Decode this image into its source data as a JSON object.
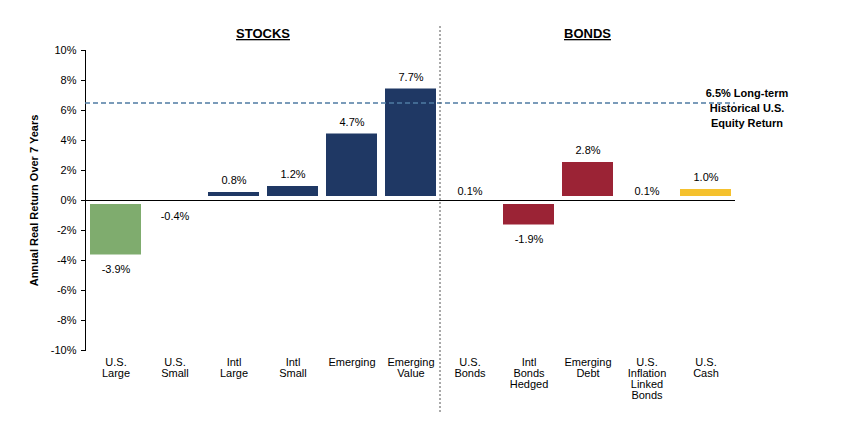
{
  "chart_data": {
    "type": "bar",
    "categories": [
      "U.S. Large",
      "U.S. Small",
      "Intl Large",
      "Intl Small",
      "Emerging",
      "Emerging Value",
      "U.S. Bonds",
      "Intl Bonds Hedged",
      "Emerging Debt",
      "U.S. Inflation Linked Bonds",
      "U.S. Cash"
    ],
    "values": [
      -3.9,
      -0.4,
      0.8,
      1.2,
      4.7,
      7.7,
      0.1,
      -1.9,
      2.8,
      0.1,
      1.0
    ],
    "value_labels": [
      "-3.9%",
      "-0.4%",
      "0.8%",
      "1.2%",
      "4.7%",
      "7.7%",
      "0.1%",
      "-1.9%",
      "2.8%",
      "0.1%",
      "1.0%"
    ],
    "colors": [
      "#7fac6e",
      "#7fac6e",
      "#1f3864",
      "#1f3864",
      "#1f3864",
      "#1f3864",
      "#9b2335",
      "#9b2335",
      "#9b2335",
      "#9b2335",
      "#f5c12e"
    ],
    "groups": [
      "STOCKS",
      "STOCKS",
      "STOCKS",
      "STOCKS",
      "STOCKS",
      "STOCKS",
      "BONDS",
      "BONDS",
      "BONDS",
      "BONDS",
      "BONDS"
    ],
    "y_label": "Annual Real Return Over 7 Years",
    "ylim": [
      -10,
      10
    ],
    "yticks": [
      {
        "value": -10,
        "label": "-10%"
      },
      {
        "value": -8,
        "label": "-8%"
      },
      {
        "value": -6,
        "label": "-6%"
      },
      {
        "value": -4,
        "label": "-4%"
      },
      {
        "value": -2,
        "label": "-2%"
      },
      {
        "value": 0,
        "label": "0%"
      },
      {
        "value": 2,
        "label": "2%"
      },
      {
        "value": 4,
        "label": "4%"
      },
      {
        "value": 6,
        "label": "6%"
      },
      {
        "value": 8,
        "label": "8%"
      },
      {
        "value": 10,
        "label": "10%"
      }
    ],
    "grid": false,
    "data_labels": true,
    "reference_line": {
      "value": 6.5,
      "label": [
        "6.5% Long-term",
        "Historical U.S.",
        "Equity Return"
      ],
      "color": "#4f7ba3",
      "line_style": "dashed"
    }
  }
}
